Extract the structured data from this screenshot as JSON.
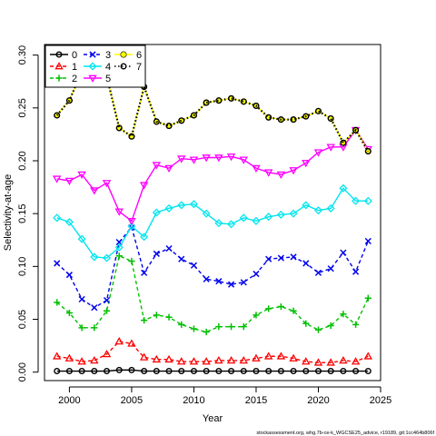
{
  "chart_data": {
    "type": "line",
    "title": "",
    "xlabel": "Year",
    "ylabel": "Selectivity-at-age",
    "xlim": [
      1998,
      2025
    ],
    "ylim": [
      -0.008,
      0.31
    ],
    "xticks": [
      2000,
      2005,
      2010,
      2015,
      2020,
      2025
    ],
    "yticks": [
      0.0,
      0.05,
      0.1,
      0.15,
      0.2,
      0.25,
      0.3
    ],
    "ytick_labels": [
      "0.00",
      "0.05",
      "0.10",
      "0.15",
      "0.20",
      "0.25",
      "0.30"
    ],
    "grid": false,
    "legend_position": "top-left",
    "footnote": "stockassessment.org, whg.7b-ce-k_WGCSE25_advice, r19189, git:1cc464b806f",
    "x": [
      1999,
      2000,
      2001,
      2002,
      2003,
      2004,
      2005,
      2006,
      2007,
      2008,
      2009,
      2010,
      2011,
      2012,
      2013,
      2014,
      2015,
      2016,
      2017,
      2018,
      2019,
      2020,
      2021,
      2022,
      2023,
      2024
    ],
    "series": [
      {
        "name": "0",
        "color": "#000000",
        "marker": "circle",
        "linestyle": "solid",
        "values": [
          0.001,
          0.001,
          0.001,
          0.001,
          0.001,
          0.002,
          0.002,
          0.001,
          0.001,
          0.001,
          0.001,
          0.001,
          0.001,
          0.001,
          0.001,
          0.001,
          0.001,
          0.001,
          0.001,
          0.001,
          0.001,
          0.001,
          0.001,
          0.001,
          0.001,
          0.001
        ]
      },
      {
        "name": "1",
        "color": "#ff0000",
        "marker": "triangle",
        "linestyle": "dashed",
        "values": [
          0.015,
          0.013,
          0.01,
          0.011,
          0.017,
          0.029,
          0.027,
          0.014,
          0.012,
          0.012,
          0.01,
          0.01,
          0.01,
          0.011,
          0.011,
          0.011,
          0.013,
          0.015,
          0.015,
          0.013,
          0.01,
          0.009,
          0.009,
          0.011,
          0.01,
          0.015
        ]
      },
      {
        "name": "2",
        "color": "#00c000",
        "marker": "plus",
        "linestyle": "dashed",
        "values": [
          0.066,
          0.056,
          0.042,
          0.042,
          0.058,
          0.11,
          0.105,
          0.049,
          0.054,
          0.052,
          0.045,
          0.041,
          0.038,
          0.043,
          0.043,
          0.043,
          0.054,
          0.06,
          0.062,
          0.058,
          0.046,
          0.04,
          0.044,
          0.055,
          0.045,
          0.07
        ]
      },
      {
        "name": "3",
        "color": "#0000ee",
        "marker": "x",
        "linestyle": "dashed",
        "values": [
          0.103,
          0.092,
          0.069,
          0.061,
          0.068,
          0.123,
          0.137,
          0.094,
          0.112,
          0.117,
          0.107,
          0.101,
          0.088,
          0.086,
          0.083,
          0.085,
          0.093,
          0.107,
          0.108,
          0.109,
          0.103,
          0.094,
          0.098,
          0.113,
          0.095,
          0.124
        ]
      },
      {
        "name": "4",
        "color": "#00e5ee",
        "marker": "diamond",
        "linestyle": "solid",
        "values": [
          0.146,
          0.142,
          0.126,
          0.109,
          0.108,
          0.118,
          0.138,
          0.128,
          0.151,
          0.155,
          0.158,
          0.159,
          0.15,
          0.141,
          0.14,
          0.146,
          0.143,
          0.147,
          0.149,
          0.15,
          0.158,
          0.153,
          0.155,
          0.174,
          0.162,
          0.162
        ]
      },
      {
        "name": "5",
        "color": "#ff00ff",
        "marker": "down-triangle",
        "linestyle": "solid",
        "values": [
          0.183,
          0.181,
          0.187,
          0.172,
          0.179,
          0.152,
          0.143,
          0.177,
          0.196,
          0.193,
          0.202,
          0.201,
          0.203,
          0.203,
          0.204,
          0.201,
          0.193,
          0.189,
          0.187,
          0.191,
          0.198,
          0.208,
          0.213,
          0.213,
          0.229,
          0.211
        ]
      },
      {
        "name": "6",
        "color": "#ffff00",
        "marker": "circle-filled",
        "linestyle": "solid",
        "values": [
          0.243,
          0.257,
          0.285,
          0.305,
          0.28,
          0.231,
          0.223,
          0.27,
          0.237,
          0.233,
          0.238,
          0.243,
          0.255,
          0.257,
          0.259,
          0.256,
          0.252,
          0.241,
          0.239,
          0.239,
          0.242,
          0.247,
          0.24,
          0.217,
          0.229,
          0.209
        ]
      },
      {
        "name": "7",
        "color": "#000000",
        "marker": "circle-open",
        "linestyle": "dotted",
        "values": [
          0.243,
          0.257,
          0.285,
          0.305,
          0.28,
          0.231,
          0.223,
          0.27,
          0.237,
          0.233,
          0.238,
          0.243,
          0.255,
          0.257,
          0.259,
          0.256,
          0.252,
          0.241,
          0.239,
          0.239,
          0.242,
          0.247,
          0.24,
          0.217,
          0.229,
          0.209
        ]
      }
    ]
  }
}
